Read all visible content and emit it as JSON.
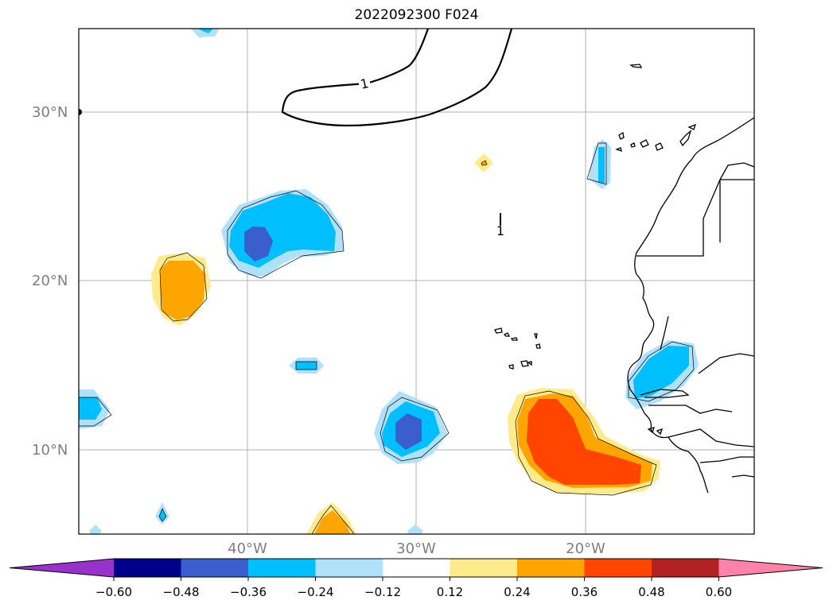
{
  "title": "2022092300 F024",
  "lat_labels": [
    "30°N",
    "20°N",
    "10°N"
  ],
  "lon_labels": [
    "40°W",
    "30°W",
    "20°W"
  ],
  "contour_label": "1",
  "colorbar": {
    "extend": "both",
    "colors": [
      "#9932cc",
      "#00008b",
      "#3a5fcd",
      "#00bfff",
      "#afe2fa",
      "#ffffff",
      "#ffeb8c",
      "#ffa500",
      "#ff4500",
      "#b22222",
      "#ff82ab"
    ],
    "tick_labels": [
      "−0.60",
      "−0.48",
      "−0.36",
      "−0.24",
      "−0.12",
      "0.12",
      "0.24",
      "0.36",
      "0.48",
      "0.60"
    ]
  }
}
